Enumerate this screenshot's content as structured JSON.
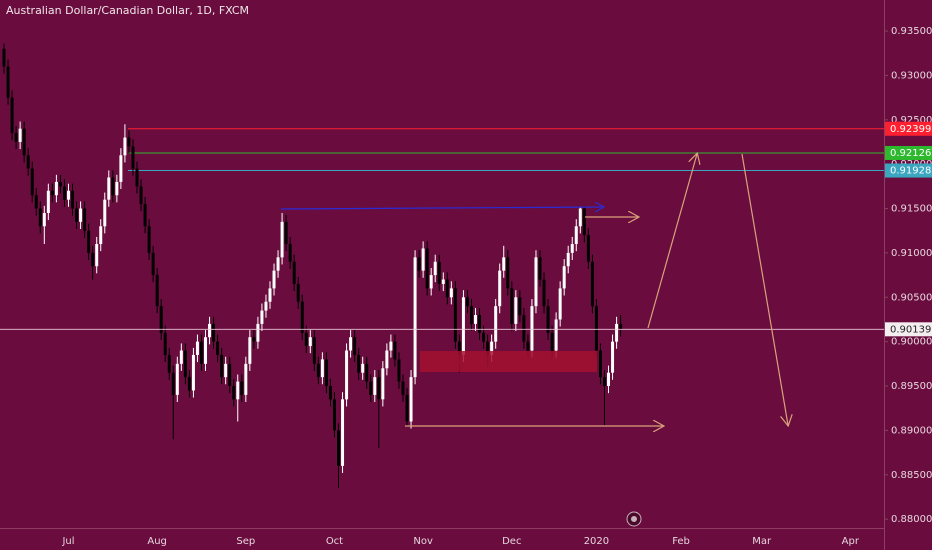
{
  "chart_data": {
    "type": "candlestick",
    "title": "Australian Dollar/Canadian Dollar, 1D, FXCM",
    "up_color": "#ffffff",
    "down_color": "#000000",
    "grid": false,
    "ylim": [
      0.879,
      0.9385
    ],
    "yticks": [
      {
        "value": 0.88,
        "label": "0.88000"
      },
      {
        "value": 0.885,
        "label": "0.88500"
      },
      {
        "value": 0.89,
        "label": "0.89000"
      },
      {
        "value": 0.895,
        "label": "0.89500"
      },
      {
        "value": 0.9,
        "label": "0.90000"
      },
      {
        "value": 0.905,
        "label": "0.90500"
      },
      {
        "value": 0.91,
        "label": "0.91000"
      },
      {
        "value": 0.915,
        "label": "0.91500"
      },
      {
        "value": 0.92,
        "label": "0.92000"
      },
      {
        "value": 0.925,
        "label": "0.92500"
      },
      {
        "value": 0.93,
        "label": "0.93000"
      },
      {
        "value": 0.935,
        "label": "0.93500"
      }
    ],
    "levels": [
      {
        "value": 0.92399,
        "color": "#ff1f2f"
      },
      {
        "value": 0.92126,
        "color": "#2db82d"
      },
      {
        "value": 0.91928,
        "color": "#3aa6bf"
      }
    ],
    "categories": [
      null,
      null,
      null,
      null,
      null,
      null,
      null,
      null,
      null,
      null,
      null,
      null,
      null,
      null,
      null,
      null,
      "Jul",
      null,
      null,
      null,
      null,
      null,
      null,
      null,
      null,
      null,
      null,
      null,
      null,
      null,
      null,
      null,
      null,
      null,
      null,
      null,
      null,
      null,
      "Aug",
      null,
      null,
      null,
      null,
      null,
      null,
      null,
      null,
      null,
      null,
      null,
      null,
      null,
      null,
      null,
      null,
      null,
      null,
      null,
      null,
      null,
      "Sep",
      null,
      null,
      null,
      null,
      null,
      null,
      null,
      null,
      null,
      null,
      null,
      null,
      null,
      null,
      null,
      null,
      null,
      null,
      null,
      null,
      null,
      "Oct",
      null,
      null,
      null,
      null,
      null,
      null,
      null,
      null,
      null,
      null,
      null,
      null,
      null,
      null,
      null,
      null,
      null,
      null,
      null,
      null,
      null,
      "Nov",
      null,
      null,
      null,
      null,
      null,
      null,
      null,
      null,
      null,
      null,
      null,
      null,
      null,
      null,
      null,
      null,
      null,
      null,
      null,
      null,
      null,
      "Dec",
      null,
      null,
      null,
      null,
      null,
      null,
      null,
      null,
      null,
      null,
      null,
      null,
      null,
      null,
      null,
      null,
      null,
      null,
      null,
      null,
      "2020",
      null,
      null,
      null,
      null,
      null,
      null,
      null,
      null,
      null,
      null,
      null,
      null,
      null,
      null,
      null,
      null,
      null,
      null,
      null,
      null,
      "Feb",
      null,
      null,
      null,
      null,
      null,
      null,
      null,
      null,
      null,
      null,
      null,
      null,
      null,
      null,
      null,
      null,
      null,
      null,
      null,
      "Mar",
      null,
      null,
      null,
      null,
      null,
      null,
      null,
      null,
      null,
      null,
      null,
      null,
      null,
      null,
      null,
      null,
      null,
      null,
      null,
      null,
      null,
      "Apr",
      null,
      null,
      null,
      null,
      null,
      null,
      null
    ],
    "open": [
      0.933,
      0.931,
      0.9275,
      0.9235,
      0.9225,
      0.924,
      0.921,
      0.9195,
      0.9165,
      0.915,
      0.913,
      0.9145,
      0.917,
      0.9165,
      0.918,
      0.9175,
      0.916,
      0.917,
      0.915,
      0.9135,
      0.915,
      0.9125,
      0.91,
      0.9085,
      0.911,
      0.913,
      0.916,
      0.9185,
      0.9165,
      0.918,
      0.921,
      0.923,
      0.922,
      0.9195,
      0.9175,
      0.9155,
      0.913,
      0.91,
      0.9075,
      0.904,
      0.901,
      0.8985,
      0.8965,
      0.894,
      0.8975,
      0.899,
      0.896,
      0.8945,
      0.8985,
      0.9,
      0.8975,
      0.9005,
      0.902,
      0.9,
      0.8985,
      0.896,
      0.8975,
      0.895,
      0.8935,
      0.8955,
      0.894,
      0.8975,
      0.9005,
      0.9,
      0.902,
      0.9035,
      0.9045,
      0.906,
      0.908,
      0.9095,
      0.9135,
      0.911,
      0.909,
      0.9065,
      0.9045,
      0.901,
      0.8995,
      0.9005,
      0.8975,
      0.896,
      0.898,
      0.895,
      0.8935,
      0.89,
      0.886,
      0.8935,
      0.899,
      0.9005,
      0.8985,
      0.8965,
      0.8975,
      0.8955,
      0.894,
      0.896,
      0.8935,
      0.897,
      0.899,
      0.9,
      0.898,
      0.8955,
      0.894,
      0.891,
      0.896,
      0.9095,
      0.908,
      0.9105,
      0.906,
      0.9075,
      0.909,
      0.9065,
      0.907,
      0.905,
      0.906,
      0.9,
      0.8985,
      0.905,
      0.904,
      0.902,
      0.903,
      0.901,
      0.9,
      0.8985,
      0.9,
      0.904,
      0.908,
      0.9095,
      0.906,
      0.902,
      0.905,
      0.903,
      0.9,
      0.899,
      0.904,
      0.9095,
      0.907,
      0.904,
      0.901,
      0.899,
      0.9025,
      0.906,
      0.9085,
      0.91,
      0.911,
      0.913,
      0.915,
      0.912,
      0.909,
      0.904,
      0.899,
      0.896,
      0.895,
      0.8965,
      0.9,
      0.902,
      null,
      null,
      null,
      null,
      null,
      null,
      null,
      null,
      null,
      null,
      null,
      null,
      null,
      null,
      null,
      null,
      null,
      null,
      null,
      null,
      null,
      null,
      null,
      null,
      null,
      null,
      null,
      null,
      null,
      null,
      null,
      null,
      null,
      null,
      null,
      null,
      null,
      null,
      null,
      null,
      null,
      null,
      null,
      null,
      null,
      null,
      null,
      null,
      null,
      null,
      null,
      null,
      null,
      null,
      null,
      null,
      null,
      null,
      null,
      null,
      null,
      null,
      null,
      null
    ],
    "high": [
      0.9336,
      0.9318,
      0.9283,
      0.9243,
      0.9248,
      0.9248,
      0.9218,
      0.9203,
      0.9173,
      0.9158,
      0.9153,
      0.9178,
      0.9178,
      0.9188,
      0.9188,
      0.9183,
      0.9178,
      0.9178,
      0.9158,
      0.9158,
      0.9158,
      0.9133,
      0.9108,
      0.9118,
      0.9138,
      0.9168,
      0.9193,
      0.9193,
      0.9188,
      0.9218,
      0.9245,
      0.9238,
      0.9228,
      0.9203,
      0.9183,
      0.9163,
      0.9138,
      0.9108,
      0.9083,
      0.9048,
      0.9018,
      0.8993,
      0.8973,
      0.8983,
      0.8998,
      0.8998,
      0.8968,
      0.8993,
      0.9008,
      0.9008,
      0.9013,
      0.9028,
      0.9028,
      0.9008,
      0.8993,
      0.8983,
      0.8983,
      0.8958,
      0.8963,
      0.8963,
      0.8983,
      0.9013,
      0.9013,
      0.9028,
      0.9043,
      0.9053,
      0.9068,
      0.9088,
      0.9103,
      0.9145,
      0.9143,
      0.9118,
      0.9098,
      0.9073,
      0.9053,
      0.9018,
      0.9013,
      0.9013,
      0.8983,
      0.8988,
      0.8988,
      0.8958,
      0.8943,
      0.8908,
      0.8943,
      0.8998,
      0.9013,
      0.9013,
      0.8993,
      0.8983,
      0.8983,
      0.8963,
      0.8968,
      0.8968,
      0.8978,
      0.8998,
      0.9008,
      0.9008,
      0.8988,
      0.8963,
      0.8948,
      0.8968,
      0.9103,
      0.9103,
      0.9113,
      0.9113,
      0.9083,
      0.9098,
      0.9098,
      0.9078,
      0.9078,
      0.9068,
      0.9068,
      0.9008,
      0.9058,
      0.9058,
      0.9048,
      0.9038,
      0.9038,
      0.9018,
      0.9008,
      0.9008,
      0.9048,
      0.9088,
      0.9108,
      0.9103,
      0.9068,
      0.9058,
      0.9058,
      0.9038,
      0.9008,
      0.9048,
      0.9103,
      0.9103,
      0.9078,
      0.9048,
      0.9018,
      0.9033,
      0.9068,
      0.9093,
      0.9108,
      0.9118,
      0.9138,
      0.9152,
      0.9152,
      0.9128,
      0.9098,
      0.9048,
      0.8998,
      0.8968,
      0.8973,
      0.9008,
      0.9028,
      0.903,
      null,
      null,
      null,
      null,
      null,
      null,
      null,
      null,
      null,
      null,
      null,
      null,
      null,
      null,
      null,
      null,
      null,
      null,
      null,
      null,
      null,
      null,
      null,
      null,
      null,
      null,
      null,
      null,
      null,
      null,
      null,
      null,
      null,
      null,
      null,
      null,
      null,
      null,
      null,
      null,
      null,
      null,
      null,
      null,
      null,
      null,
      null,
      null,
      null,
      null,
      null,
      null,
      null,
      null,
      null,
      null,
      null,
      null,
      null,
      null,
      null,
      null,
      null,
      null
    ],
    "low": [
      0.9302,
      0.9267,
      0.9227,
      0.9217,
      0.9217,
      0.9202,
      0.9187,
      0.9157,
      0.9142,
      0.9122,
      0.911,
      0.9137,
      0.9157,
      0.9157,
      0.9167,
      0.9152,
      0.9152,
      0.9142,
      0.9127,
      0.9127,
      0.9117,
      0.9092,
      0.907,
      0.9077,
      0.9102,
      0.9122,
      0.9152,
      0.9157,
      0.9157,
      0.9172,
      0.9202,
      0.9212,
      0.9187,
      0.9167,
      0.9147,
      0.9122,
      0.9092,
      0.9067,
      0.9032,
      0.9002,
      0.8977,
      0.8957,
      0.889,
      0.8932,
      0.8967,
      0.8952,
      0.8937,
      0.8937,
      0.8977,
      0.8967,
      0.8967,
      0.8997,
      0.8992,
      0.8977,
      0.8952,
      0.8952,
      0.8942,
      0.8927,
      0.891,
      0.8932,
      0.8932,
      0.8967,
      0.8992,
      0.8992,
      0.9012,
      0.9027,
      0.9037,
      0.9052,
      0.9072,
      0.9087,
      0.9102,
      0.9082,
      0.9057,
      0.9037,
      0.9002,
      0.8987,
      0.8987,
      0.8967,
      0.8952,
      0.8952,
      0.8942,
      0.8927,
      0.8892,
      0.8835,
      0.8852,
      0.8927,
      0.8982,
      0.8977,
      0.8957,
      0.8957,
      0.8947,
      0.8932,
      0.8932,
      0.888,
      0.8927,
      0.8962,
      0.8982,
      0.8972,
      0.8947,
      0.8932,
      0.8905,
      0.8902,
      0.8952,
      0.9072,
      0.9072,
      0.9052,
      0.9052,
      0.9067,
      0.9057,
      0.9057,
      0.9042,
      0.9042,
      0.8992,
      0.8965,
      0.8977,
      0.9032,
      0.9012,
      0.9012,
      0.9002,
      0.8992,
      0.8972,
      0.8977,
      0.8992,
      0.9032,
      0.9072,
      0.9052,
      0.9012,
      0.9012,
      0.9022,
      0.8992,
      0.8982,
      0.8982,
      0.9032,
      0.9062,
      0.9032,
      0.9002,
      0.8982,
      0.8982,
      0.9017,
      0.9052,
      0.9077,
      0.9092,
      0.9102,
      0.9122,
      0.9112,
      0.9082,
      0.9032,
      0.8982,
      0.8952,
      0.8906,
      0.8942,
      0.8957,
      0.8992,
      0.9006,
      null,
      null,
      null,
      null,
      null,
      null,
      null,
      null,
      null,
      null,
      null,
      null,
      null,
      null,
      null,
      null,
      null,
      null,
      null,
      null,
      null,
      null,
      null,
      null,
      null,
      null,
      null,
      null,
      null,
      null,
      null,
      null,
      null,
      null,
      null,
      null,
      null,
      null,
      null,
      null,
      null,
      null,
      null,
      null,
      null,
      null,
      null,
      null,
      null,
      null,
      null,
      null,
      null,
      null,
      null,
      null,
      null,
      null,
      null,
      null,
      null,
      null,
      null,
      null
    ],
    "close": [
      0.931,
      0.9275,
      0.9235,
      0.9225,
      0.924,
      0.921,
      0.9195,
      0.9165,
      0.915,
      0.913,
      0.9145,
      0.917,
      0.9165,
      0.918,
      0.9175,
      0.916,
      0.917,
      0.915,
      0.9135,
      0.915,
      0.9125,
      0.91,
      0.9085,
      0.911,
      0.913,
      0.916,
      0.9185,
      0.9165,
      0.918,
      0.921,
      0.923,
      0.922,
      0.9195,
      0.9175,
      0.9155,
      0.913,
      0.91,
      0.9075,
      0.904,
      0.901,
      0.8985,
      0.8965,
      0.894,
      0.8975,
      0.899,
      0.896,
      0.8945,
      0.8985,
      0.9,
      0.8975,
      0.9005,
      0.902,
      0.9,
      0.8985,
      0.896,
      0.8975,
      0.895,
      0.8935,
      0.8955,
      0.894,
      0.8975,
      0.9005,
      0.9,
      0.902,
      0.9035,
      0.9045,
      0.906,
      0.908,
      0.9095,
      0.9135,
      0.911,
      0.909,
      0.9065,
      0.9045,
      0.901,
      0.8995,
      0.9005,
      0.8975,
      0.896,
      0.898,
      0.895,
      0.8935,
      0.89,
      0.886,
      0.8935,
      0.899,
      0.9005,
      0.8985,
      0.8965,
      0.8975,
      0.8955,
      0.894,
      0.896,
      0.8935,
      0.897,
      0.899,
      0.9,
      0.898,
      0.8955,
      0.894,
      0.891,
      0.896,
      0.9095,
      0.908,
      0.9105,
      0.906,
      0.9075,
      0.909,
      0.9065,
      0.907,
      0.905,
      0.906,
      0.9,
      0.8985,
      0.905,
      0.904,
      0.902,
      0.903,
      0.901,
      0.9,
      0.8985,
      0.9,
      0.904,
      0.908,
      0.9095,
      0.906,
      0.902,
      0.905,
      0.903,
      0.9,
      0.899,
      0.904,
      0.9095,
      0.907,
      0.904,
      0.901,
      0.899,
      0.9025,
      0.906,
      0.9085,
      0.91,
      0.911,
      0.913,
      0.915,
      0.912,
      0.909,
      0.904,
      0.899,
      0.896,
      0.895,
      0.8965,
      0.9,
      0.902,
      0.90139,
      null,
      null,
      null,
      null,
      null,
      null,
      null,
      null,
      null,
      null,
      null,
      null,
      null,
      null,
      null,
      null,
      null,
      null,
      null,
      null,
      null,
      null,
      null,
      null,
      null,
      null,
      null,
      null,
      null,
      null,
      null,
      null,
      null,
      null,
      null,
      null,
      null,
      null,
      null,
      null,
      null,
      null,
      null,
      null,
      null,
      null,
      null,
      null,
      null,
      null,
      null,
      null,
      null,
      null,
      null,
      null,
      null,
      null,
      null,
      null,
      null,
      null,
      null,
      null
    ]
  }
}
